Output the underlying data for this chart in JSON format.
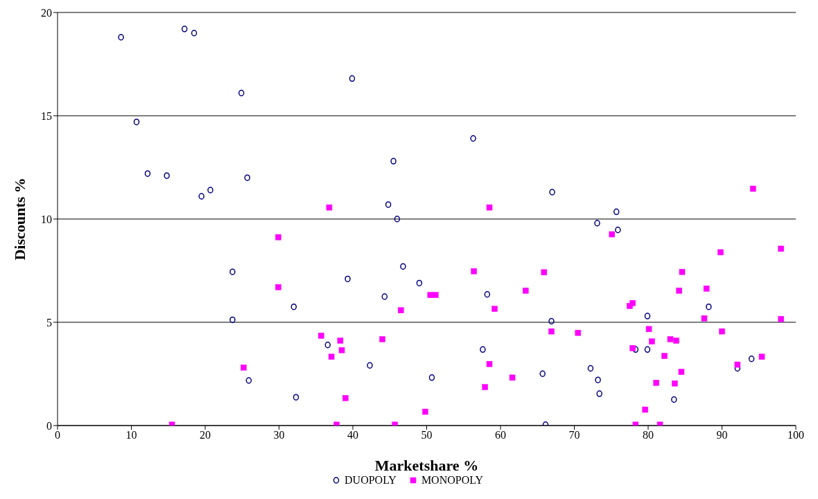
{
  "chart_data": {
    "type": "scatter",
    "xlabel": "Marketshare %",
    "ylabel": "Discounts %",
    "xlim": [
      0,
      100
    ],
    "xticks": [
      0,
      10,
      20,
      30,
      40,
      50,
      60,
      70,
      80,
      90,
      100
    ],
    "ylim": [
      0,
      20
    ],
    "yticks": [
      0,
      5,
      10,
      15,
      20
    ],
    "grid": "y",
    "legend": "bottom",
    "series": [
      {
        "name": "DUOPOLY",
        "color": "#000080",
        "marker": "circle",
        "x": [
          8.6,
          17.2,
          18.5,
          39.9,
          24.9,
          10.7,
          12.2,
          14.8,
          19.5,
          20.7,
          25.7,
          56.3,
          45.5,
          67.0,
          44.8,
          46.0,
          75.7,
          73.1,
          75.9,
          23.7,
          32.0,
          23.7,
          25.9,
          32.3,
          46.8,
          39.3,
          49.0,
          44.3,
          58.2,
          66.9,
          36.6,
          57.6,
          42.3,
          50.7,
          65.7,
          66.1,
          88.2,
          79.9,
          78.3,
          79.9,
          72.2,
          94.0,
          92.1,
          73.2,
          73.4,
          83.5
        ],
        "values": [
          18.8,
          19.2,
          19.0,
          16.8,
          16.1,
          14.7,
          12.2,
          12.1,
          11.1,
          11.4,
          12.0,
          13.9,
          12.8,
          11.3,
          10.7,
          10.0,
          10.35,
          9.8,
          9.47,
          7.44,
          5.75,
          5.12,
          2.18,
          1.37,
          7.7,
          7.1,
          6.9,
          6.24,
          6.35,
          5.05,
          3.9,
          3.68,
          2.91,
          2.32,
          2.51,
          0.04,
          5.75,
          5.3,
          3.68,
          3.68,
          2.77,
          3.23,
          2.77,
          2.21,
          1.54,
          1.26
        ]
      },
      {
        "name": "MONOPOLY",
        "color": "#ff00ff",
        "marker": "square",
        "x": [
          36.8,
          58.5,
          94.2,
          29.9,
          29.9,
          25.2,
          15.5,
          56.4,
          65.9,
          63.4,
          50.5,
          51.2,
          46.5,
          59.2,
          66.9,
          35.7,
          38.3,
          44.0,
          38.5,
          37.1,
          58.5,
          61.6,
          57.9,
          39.0,
          49.8,
          37.8,
          45.7,
          75.1,
          89.8,
          98.0,
          84.6,
          84.2,
          87.9,
          77.9,
          77.5,
          87.6,
          98.0,
          80.1,
          90.0,
          70.5,
          80.5,
          83.0,
          83.8,
          77.9,
          82.2,
          95.4,
          92.1,
          84.5,
          81.1,
          83.6,
          79.6,
          78.3,
          81.6
        ],
        "values": [
          10.56,
          10.56,
          11.47,
          9.12,
          6.7,
          2.81,
          0.04,
          7.47,
          7.42,
          6.53,
          6.32,
          6.32,
          5.58,
          5.65,
          4.56,
          4.35,
          4.11,
          4.18,
          3.65,
          3.33,
          2.98,
          2.32,
          1.86,
          1.33,
          0.67,
          0.04,
          0.04,
          9.26,
          8.39,
          8.56,
          7.44,
          6.53,
          6.63,
          5.93,
          5.79,
          5.19,
          5.16,
          4.67,
          4.56,
          4.49,
          4.07,
          4.18,
          4.11,
          3.75,
          3.37,
          3.33,
          2.95,
          2.6,
          2.07,
          2.04,
          0.77,
          0.04,
          0.04
        ]
      }
    ]
  }
}
